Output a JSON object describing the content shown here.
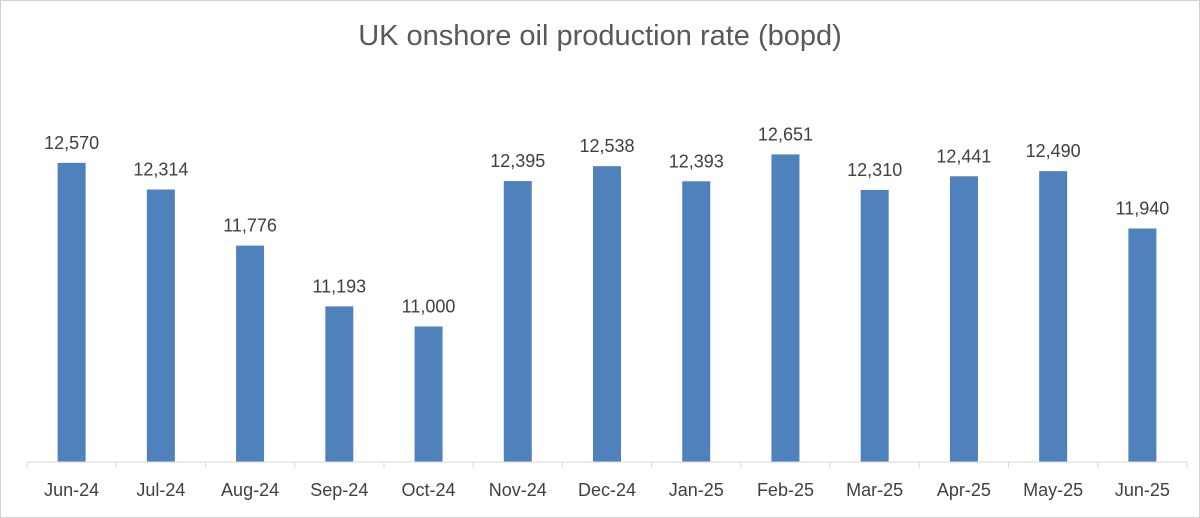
{
  "chart_data": {
    "type": "bar",
    "title": "UK onshore oil production rate (bopd)",
    "categories": [
      "Jun-24",
      "Jul-24",
      "Aug-24",
      "Sep-24",
      "Oct-24",
      "Nov-24",
      "Dec-24",
      "Jan-25",
      "Feb-25",
      "Mar-25",
      "Apr-25",
      "May-25",
      "Jun-25"
    ],
    "values": [
      12570,
      12314,
      11776,
      11193,
      11000,
      12395,
      12538,
      12393,
      12651,
      12310,
      12441,
      12490,
      11940
    ],
    "value_labels": [
      "12,570",
      "12,314",
      "11,776",
      "11,193",
      "11,000",
      "12,395",
      "12,538",
      "12,393",
      "12,651",
      "12,310",
      "12,441",
      "12,490",
      "11,940"
    ],
    "ylim": [
      9700,
      13000
    ],
    "grid": false,
    "bar_color": "#4F81BD"
  }
}
